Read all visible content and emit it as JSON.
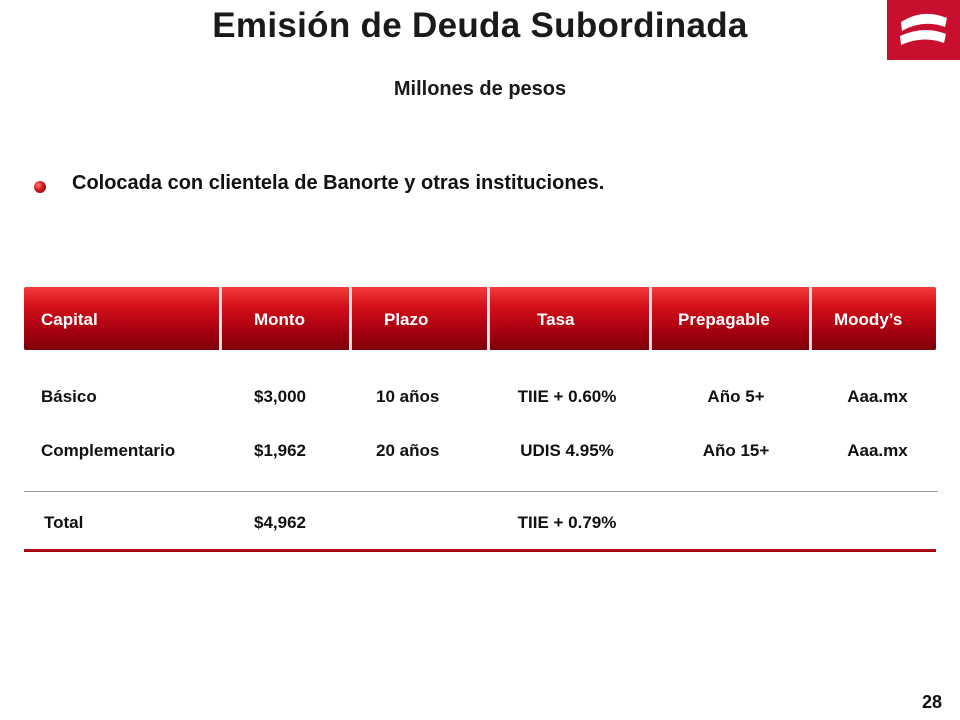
{
  "slide": {
    "title": "Emisión de Deuda Subordinada",
    "subtitle": "Millones de pesos",
    "bullet": "Colocada con clientela  de Banorte y otras instituciones.",
    "page_number": "28",
    "accent_color": "#c8102e"
  },
  "logo": {
    "icon": "banorte-logo-icon"
  },
  "table": {
    "headers": [
      "Capital",
      "Monto",
      "Plazo",
      "Tasa",
      "Prepagable",
      "Moody’s"
    ],
    "rows": [
      [
        "Básico",
        "$3,000",
        "10 años",
        "TIIE + 0.60%",
        "Año 5+",
        "Aaa.mx"
      ],
      [
        "Complementario",
        "$1,962",
        "20 años",
        "UDIS 4.95%",
        "Año 15+",
        "Aaa.mx"
      ]
    ],
    "total": [
      "Total",
      "$4,962",
      "",
      "TIIE + 0.79%",
      "",
      ""
    ]
  }
}
